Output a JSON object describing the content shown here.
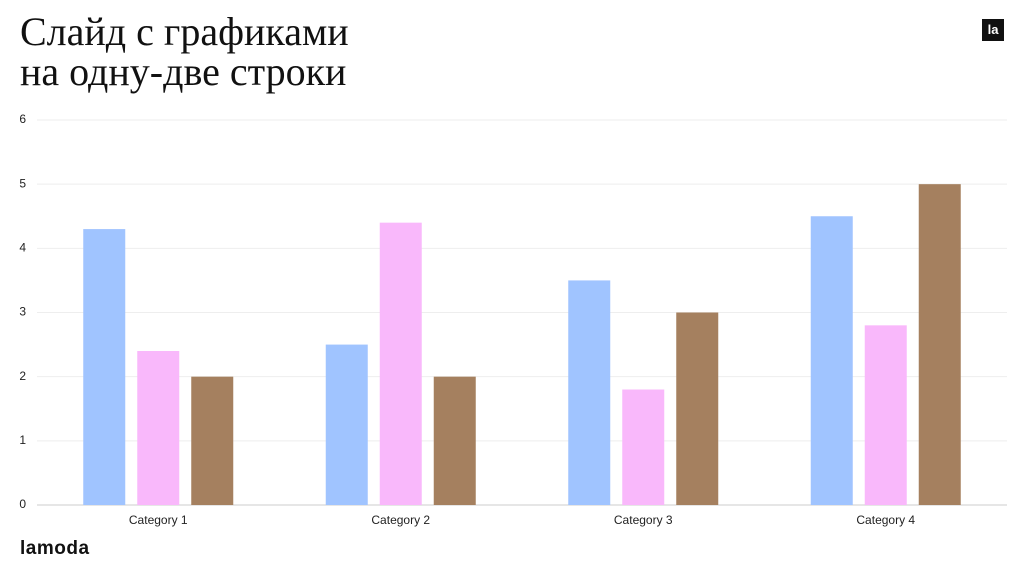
{
  "header": {
    "badge": "la"
  },
  "footer": {
    "brand": "lamoda"
  },
  "chart_data": {
    "type": "bar",
    "title": "Слайд с графиками\nна одну-две строки",
    "categories": [
      "Category 1",
      "Category 2",
      "Category 3",
      "Category 4"
    ],
    "series": [
      {
        "color": "#a0c4ff",
        "values": [
          4.3,
          2.5,
          3.5,
          4.5
        ]
      },
      {
        "color": "#f9b8fb",
        "values": [
          2.4,
          4.4,
          1.8,
          2.8
        ]
      },
      {
        "color": "#a5805f",
        "values": [
          2,
          2,
          3,
          5
        ]
      }
    ],
    "ylim": [
      0,
      6
    ],
    "yticks": [
      0,
      1,
      2,
      3,
      4,
      5,
      6
    ],
    "grid": true
  }
}
